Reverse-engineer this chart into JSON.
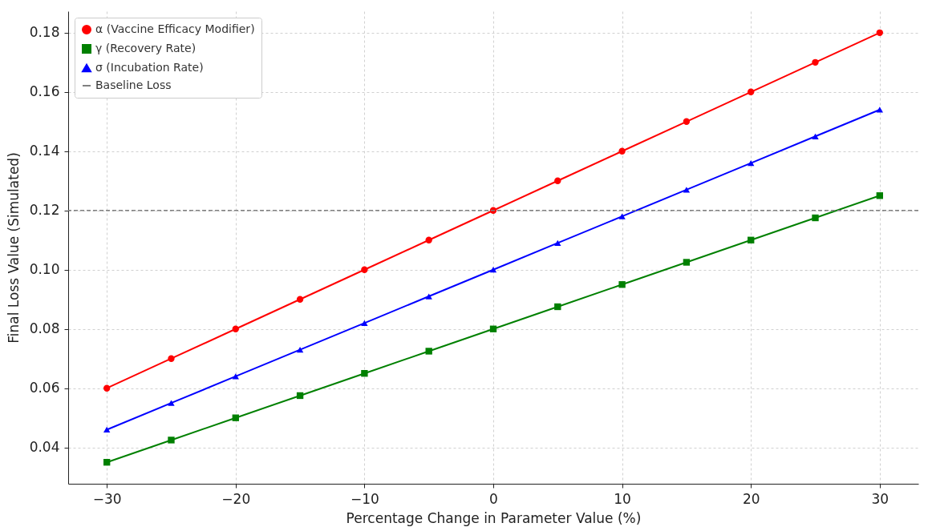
{
  "chart_data": {
    "type": "line",
    "xlabel": "Percentage Change in Parameter Value (%)",
    "ylabel": "Final Loss Value (Simulated)",
    "x": [
      -30,
      -25,
      -20,
      -15,
      -10,
      -5,
      0,
      5,
      10,
      15,
      20,
      25,
      30
    ],
    "series": [
      {
        "name": "α (Vaccine Efficacy Modifier)",
        "color": "#ff0000",
        "marker": "circle",
        "values": [
          0.06,
          0.07,
          0.08,
          0.09,
          0.1,
          0.11,
          0.12,
          0.13,
          0.14,
          0.15,
          0.16,
          0.17,
          0.18
        ]
      },
      {
        "name": "γ (Recovery Rate)",
        "color": "#008000",
        "marker": "square",
        "values": [
          0.035,
          0.0425,
          0.05,
          0.0575,
          0.065,
          0.0725,
          0.08,
          0.0875,
          0.095,
          0.1025,
          0.11,
          0.1175,
          0.125
        ]
      },
      {
        "name": "σ (Incubation Rate)",
        "color": "#0000ff",
        "marker": "triangle",
        "values": [
          0.046,
          0.055,
          0.064,
          0.073,
          0.082,
          0.091,
          0.1,
          0.109,
          0.118,
          0.127,
          0.136,
          0.145,
          0.154
        ]
      }
    ],
    "ref_lines": [
      {
        "axis": "y",
        "value": 0.12,
        "label": "Baseline Loss",
        "color": "#808080",
        "line_style": "dashed"
      }
    ],
    "xlim": [
      -33,
      33
    ],
    "xticks": [
      {
        "value": -30,
        "label": "−30"
      },
      {
        "value": -20,
        "label": "−20"
      },
      {
        "value": -10,
        "label": "−10"
      },
      0,
      10,
      20,
      30
    ],
    "ylim": [
      0.02775,
      0.18725
    ],
    "yticks": [
      {
        "value": 0.04,
        "label": "0.04"
      },
      {
        "value": 0.06,
        "label": "0.06"
      },
      {
        "value": 0.08,
        "label": "0.08"
      },
      {
        "value": 0.1,
        "label": "0.10"
      },
      {
        "value": 0.12,
        "label": "0.12"
      },
      {
        "value": 0.14,
        "label": "0.14"
      },
      {
        "value": 0.16,
        "label": "0.16"
      },
      {
        "value": 0.18,
        "label": "0.18"
      }
    ],
    "grid": true,
    "legend": "top left"
  }
}
